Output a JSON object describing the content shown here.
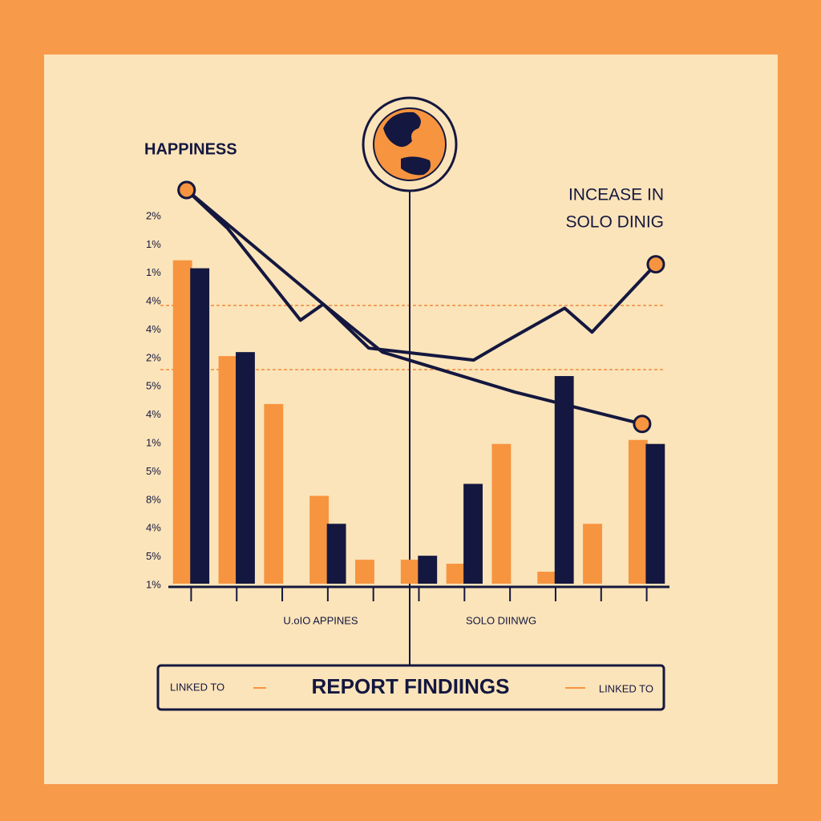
{
  "chart_data": {
    "type": "bar",
    "title": "HAPPINESS",
    "annotation_lines": [
      "INCEASE IN",
      "SOLO DINIG"
    ],
    "y_axis_labels": [
      "2%",
      "1%",
      "1%",
      "4%",
      "4%",
      "2%",
      "5%",
      "4%",
      "1%",
      "5%",
      "8%",
      "4%",
      "5%",
      "1%"
    ],
    "group_labels": [
      "U.oIO APPINES",
      "SOLO DIINWG"
    ],
    "categories": [
      null,
      null,
      null,
      null,
      null,
      null,
      null,
      null,
      null,
      null,
      null
    ],
    "ylim": [
      0,
      100
    ],
    "xlim": [
      -0.5,
      10.5
    ],
    "series": [
      {
        "color": "#f7943f",
        "values": [
          81,
          57,
          45,
          22,
          6,
          6,
          5,
          35,
          3,
          15,
          36
        ]
      },
      {
        "color": "#14173f",
        "values": [
          79,
          58,
          null,
          15,
          null,
          7,
          25,
          null,
          52,
          null,
          35
        ]
      }
    ],
    "lines": [
      {
        "color": "#14173f",
        "x": [
          -0.1,
          0.8,
          2.4,
          2.9,
          3.9,
          6.2,
          6.8,
          8.2,
          8.8,
          10.2
        ],
        "values": [
          98.6,
          89,
          66,
          70,
          59,
          56,
          60,
          69,
          63,
          80
        ]
      },
      {
        "color": "#14173f",
        "x": [
          -0.1,
          2.9,
          4.2,
          7.1,
          9.9
        ],
        "values": [
          98.6,
          70,
          58,
          48,
          40
        ]
      }
    ],
    "footer": {
      "left": "LINKED TO",
      "center": "REPORT FINDIINGS",
      "right": "LINKED TO"
    }
  }
}
